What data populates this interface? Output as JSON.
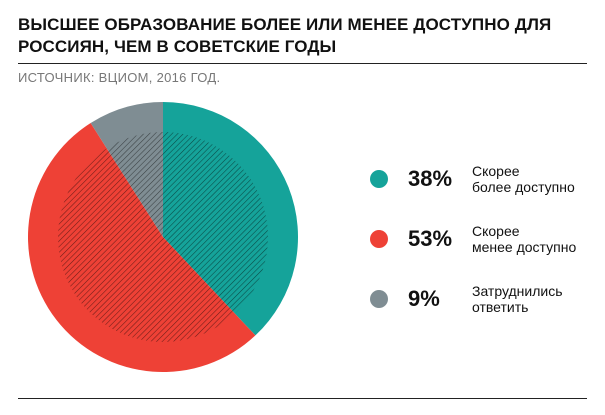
{
  "header": {
    "title": "Высшее образование более или менее доступно для россиян, чем в советские годы",
    "source": "ИСТОЧНИК: ВЦИОМ, 2016 ГОД."
  },
  "chart_data": {
    "type": "pie",
    "title": "Высшее образование более или менее доступно для россиян, чем в советские годы",
    "slices": [
      {
        "pct_label": "38%",
        "label_line1": "Скорее",
        "label_line2": "более доступно",
        "value": 38,
        "color": "#15a39a"
      },
      {
        "pct_label": "53%",
        "label_line1": "Скорее",
        "label_line2": "менее доступно",
        "value": 53,
        "color": "#ee4136"
      },
      {
        "pct_label": "9%",
        "label_line1": "Затруднились",
        "label_line2": "ответить",
        "value": 9,
        "color": "#7f8d93"
      }
    ],
    "legend": "right"
  }
}
